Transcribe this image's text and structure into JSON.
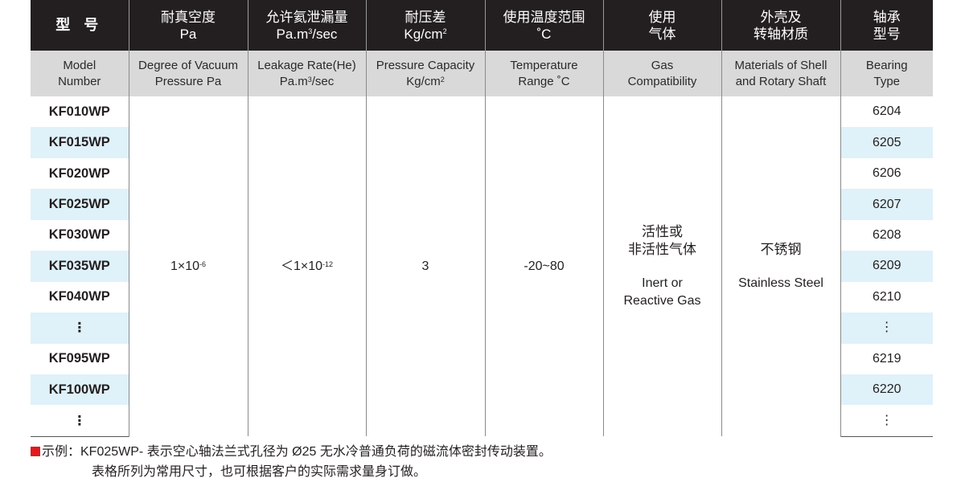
{
  "header": {
    "model": "型 号",
    "vacuum": [
      "耐真空度",
      "Pa"
    ],
    "leakage": [
      "允许氦泄漏量",
      "Pa.m",
      "3",
      "/sec"
    ],
    "pressure": [
      "耐压差",
      "Kg/cm",
      "2"
    ],
    "temperature": [
      "使用温度范围",
      "˚C"
    ],
    "gas": [
      "使用",
      "气体"
    ],
    "material": [
      "外壳及",
      "转轴材质"
    ],
    "bearing": [
      "轴承",
      "型号"
    ]
  },
  "subheader": {
    "model": [
      "Model",
      "Number"
    ],
    "vacuum": [
      "Degree of Vacuum",
      "Pressure Pa"
    ],
    "leakage": [
      "Leakage Rate(He)",
      "Pa.m",
      "3",
      "/sec"
    ],
    "pressure": [
      "Pressure Capacity",
      "Kg/cm",
      "2"
    ],
    "temperature": [
      "Temperature",
      "Range ˚C"
    ],
    "gas": [
      "Gas",
      "Compatibility"
    ],
    "material": [
      "Materials of Shell",
      "and Rotary Shaft"
    ],
    "bearing": [
      "Bearing",
      "Type"
    ]
  },
  "rows": [
    {
      "model": "KF010WP",
      "bearing": "6204"
    },
    {
      "model": "KF015WP",
      "bearing": "6205"
    },
    {
      "model": "KF020WP",
      "bearing": "6206"
    },
    {
      "model": "KF025WP",
      "bearing": "6207"
    },
    {
      "model": "KF030WP",
      "bearing": "6208"
    },
    {
      "model": "KF035WP",
      "bearing": "6209"
    },
    {
      "model": "KF040WP",
      "bearing": "6210"
    },
    {
      "model": "⋮",
      "bearing": "⋮"
    },
    {
      "model": "KF095WP",
      "bearing": "6219"
    },
    {
      "model": "KF100WP",
      "bearing": "6220"
    },
    {
      "model": "⋮",
      "bearing": "⋮"
    }
  ],
  "shared": {
    "vacuum": [
      "1×10",
      "-6"
    ],
    "leakage": [
      "＜1×10",
      "-12"
    ],
    "pressure": "3",
    "temperature": "-20~80",
    "gas_cn": [
      "活性或",
      "非活性气体"
    ],
    "gas_en": [
      "Inert or",
      "Reactive Gas"
    ],
    "material_cn": "不锈钢",
    "material_en": "Stainless Steel"
  },
  "note": {
    "line1": "示例：KF025WP- 表示空心轴法兰式孔径为 Ø25 无水冷普通负荷的磁流体密封传动装置。",
    "line2": "表格所列为常用尺寸，也可根据客户的实际需求量身订做。",
    "marker_color": "#e0191f"
  },
  "colors": {
    "header_bg": "#231f20",
    "subheader_bg": "#d9d9d9",
    "alt_row_bg": "#dff1f9"
  }
}
